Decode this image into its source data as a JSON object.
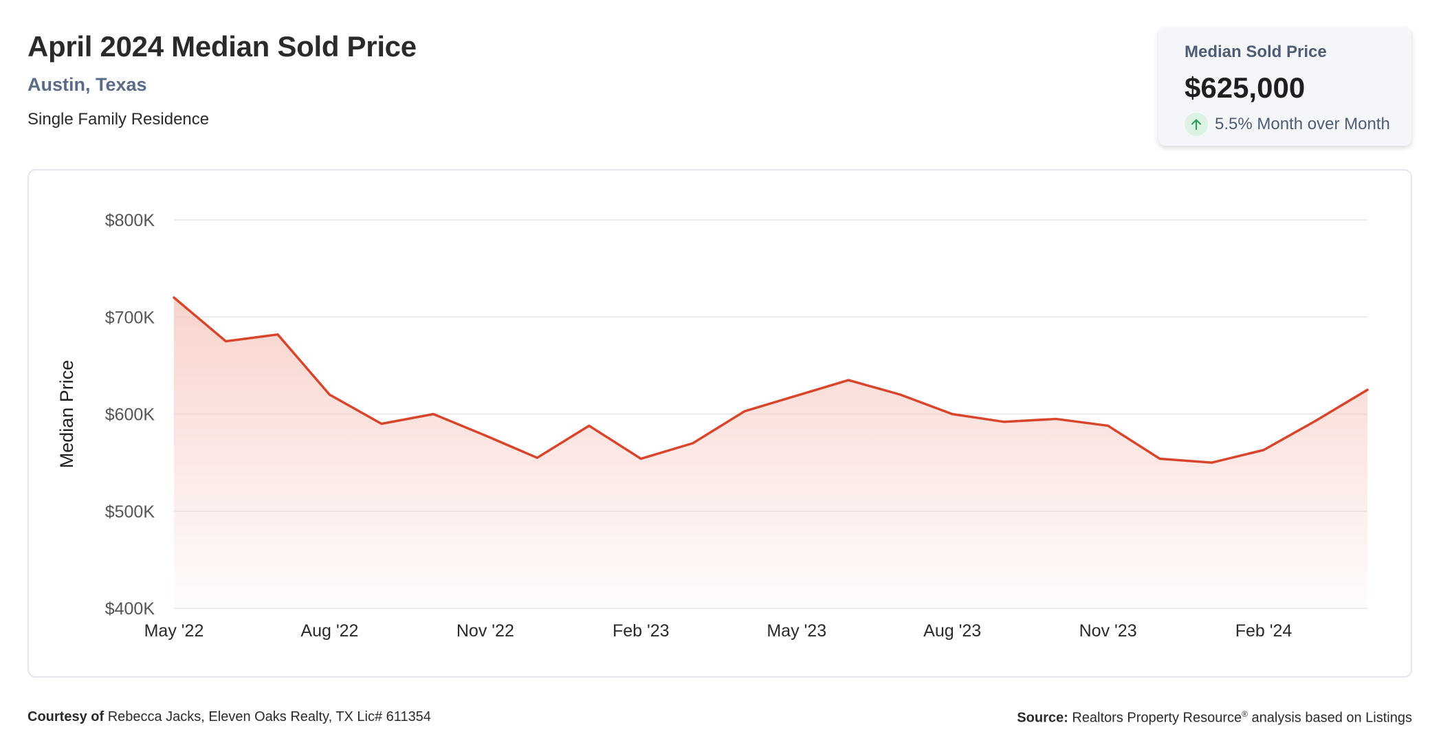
{
  "header": {
    "title": "April 2024 Median Sold Price",
    "location": "Austin, Texas",
    "property_type": "Single Family Residence"
  },
  "stat_card": {
    "label": "Median Sold Price",
    "value": "$625,000",
    "change": "5.5% Month over Month",
    "direction": "up"
  },
  "footer": {
    "courtesy_label": "Courtesy of",
    "courtesy_text": "Rebecca Jacks, Eleven Oaks Realty, TX Lic# 611354",
    "source_label": "Source:",
    "source_text_a": "Realtors Property Resource",
    "source_mark": "®",
    "source_text_b": " analysis based on Listings"
  },
  "colors": {
    "line": "#d9452b",
    "area_top": "#f7cbc4",
    "grid": "#e4e6ea",
    "axis_text": "#555555",
    "up_arrow": "#2f9e5c"
  },
  "chart_data": {
    "type": "area",
    "ylabel": "Median Price",
    "xlabel": "",
    "ylim": [
      400000,
      800000
    ],
    "y_ticks": [
      {
        "value": 800000,
        "label": "$800K"
      },
      {
        "value": 700000,
        "label": "$700K"
      },
      {
        "value": 600000,
        "label": "$600K"
      },
      {
        "value": 500000,
        "label": "$500K"
      },
      {
        "value": 400000,
        "label": "$400K"
      }
    ],
    "x_ticks": [
      {
        "index": 0,
        "label": "May '22"
      },
      {
        "index": 3,
        "label": "Aug '22"
      },
      {
        "index": 6,
        "label": "Nov '22"
      },
      {
        "index": 9,
        "label": "Feb '23"
      },
      {
        "index": 12,
        "label": "May '23"
      },
      {
        "index": 15,
        "label": "Aug '23"
      },
      {
        "index": 18,
        "label": "Nov '23"
      },
      {
        "index": 21,
        "label": "Feb '24"
      }
    ],
    "x": [
      "May '22",
      "Jun '22",
      "Jul '22",
      "Aug '22",
      "Sep '22",
      "Oct '22",
      "Nov '22",
      "Dec '22",
      "Jan '23",
      "Feb '23",
      "Mar '23",
      "Apr '23",
      "May '23",
      "Jun '23",
      "Jul '23",
      "Aug '23",
      "Sep '23",
      "Oct '23",
      "Nov '23",
      "Dec '23",
      "Jan '24",
      "Feb '24",
      "Mar '24",
      "Apr '24"
    ],
    "values": [
      720000,
      675000,
      682000,
      620000,
      590000,
      600000,
      578000,
      555000,
      588000,
      554000,
      570000,
      603000,
      619000,
      635000,
      620000,
      600000,
      592000,
      595000,
      588000,
      554000,
      550000,
      563000,
      593000,
      625000
    ],
    "grid": true,
    "legend": "none"
  }
}
